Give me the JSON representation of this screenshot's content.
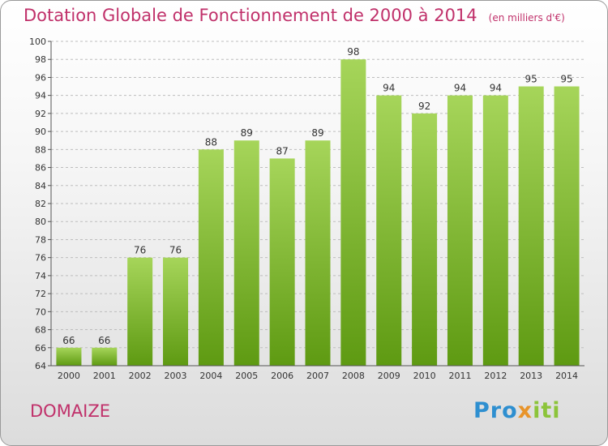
{
  "header": {
    "title": "Dotation Globale de Fonctionnement de 2000 à 2014",
    "unit": "(en milliers d'€)"
  },
  "footer": {
    "commune": "DOMAIZE",
    "logo_parts": [
      "Pro",
      "x",
      "iti"
    ],
    "logo_colors": [
      "#2e8fd0",
      "#e8942a",
      "#8cc43a"
    ]
  },
  "colors": {
    "title": "#c0306a",
    "bar_top": "#a6d55a",
    "bar_bottom": "#5e9a12",
    "grid": "#bdbdbd"
  },
  "chart_data": {
    "type": "bar",
    "title": "Dotation Globale de Fonctionnement de 2000 à 2014",
    "xlabel": "",
    "ylabel": "",
    "categories": [
      "2000",
      "2001",
      "2002",
      "2003",
      "2004",
      "2005",
      "2006",
      "2007",
      "2008",
      "2009",
      "2010",
      "2011",
      "2012",
      "2013",
      "2014"
    ],
    "values": [
      66,
      66,
      76,
      76,
      88,
      89,
      87,
      89,
      98,
      94,
      92,
      94,
      94,
      95,
      95
    ],
    "ylim": [
      64,
      100
    ],
    "yticks": [
      64,
      66,
      68,
      70,
      72,
      74,
      76,
      78,
      80,
      82,
      84,
      86,
      88,
      90,
      92,
      94,
      96,
      98,
      100
    ],
    "grid": true,
    "data_labels": true
  }
}
